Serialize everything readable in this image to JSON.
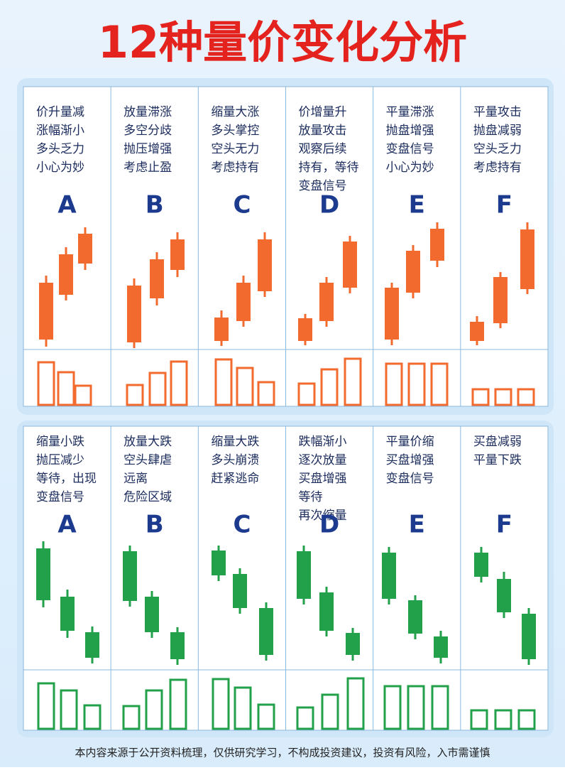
{
  "title": "12种量价变化分析",
  "panels": [
    {
      "columns": [
        {
          "lines": [
            "价升量减",
            "涨幅渐小",
            "多头乏力",
            "小心为妙"
          ],
          "letter": "A"
        },
        {
          "lines": [
            "放量滞涨",
            "多空分歧",
            "抛压增强",
            "考虑止盈"
          ],
          "letter": "B"
        },
        {
          "lines": [
            "缩量大涨",
            "多头掌控",
            "空头无力",
            "考虑持有"
          ],
          "letter": "C"
        },
        {
          "lines": [
            "价增量升",
            "放量攻击",
            "观察后续",
            "持有，等待",
            "变盘信号"
          ],
          "letter": "D"
        },
        {
          "lines": [
            "平量滞涨",
            "抛盘增强",
            "变盘信号",
            "小心为妙"
          ],
          "letter": "E"
        },
        {
          "lines": [
            "平量攻击",
            "抛盘减弱",
            "空头乏力",
            "考虑持有"
          ],
          "letter": "F"
        }
      ]
    },
    {
      "columns": [
        {
          "lines": [
            "缩量小跌",
            "抛压减少",
            "等待，出现",
            "变盘信号"
          ],
          "letter": "A"
        },
        {
          "lines": [
            "放量大跌",
            "空头肆虐",
            "远离",
            "危险区域"
          ],
          "letter": "B"
        },
        {
          "lines": [
            "缩量大跌",
            "多头崩溃",
            "赶紧逃命"
          ],
          "letter": "C"
        },
        {
          "lines": [
            "跌幅渐小",
            "逐次放量",
            "买盘增强",
            "等待",
            "再次缩量"
          ],
          "letter": "D"
        },
        {
          "lines": [
            "平量价缩",
            "买盘增强",
            "变盘信号"
          ],
          "letter": "E"
        },
        {
          "lines": [
            "买盘减弱",
            "平量下跌"
          ],
          "letter": "F"
        }
      ]
    }
  ],
  "footer": "本内容来源于公开资料梳理，仅供研究学习，不构成投资建议，投资有风险，入市需谨慎"
}
